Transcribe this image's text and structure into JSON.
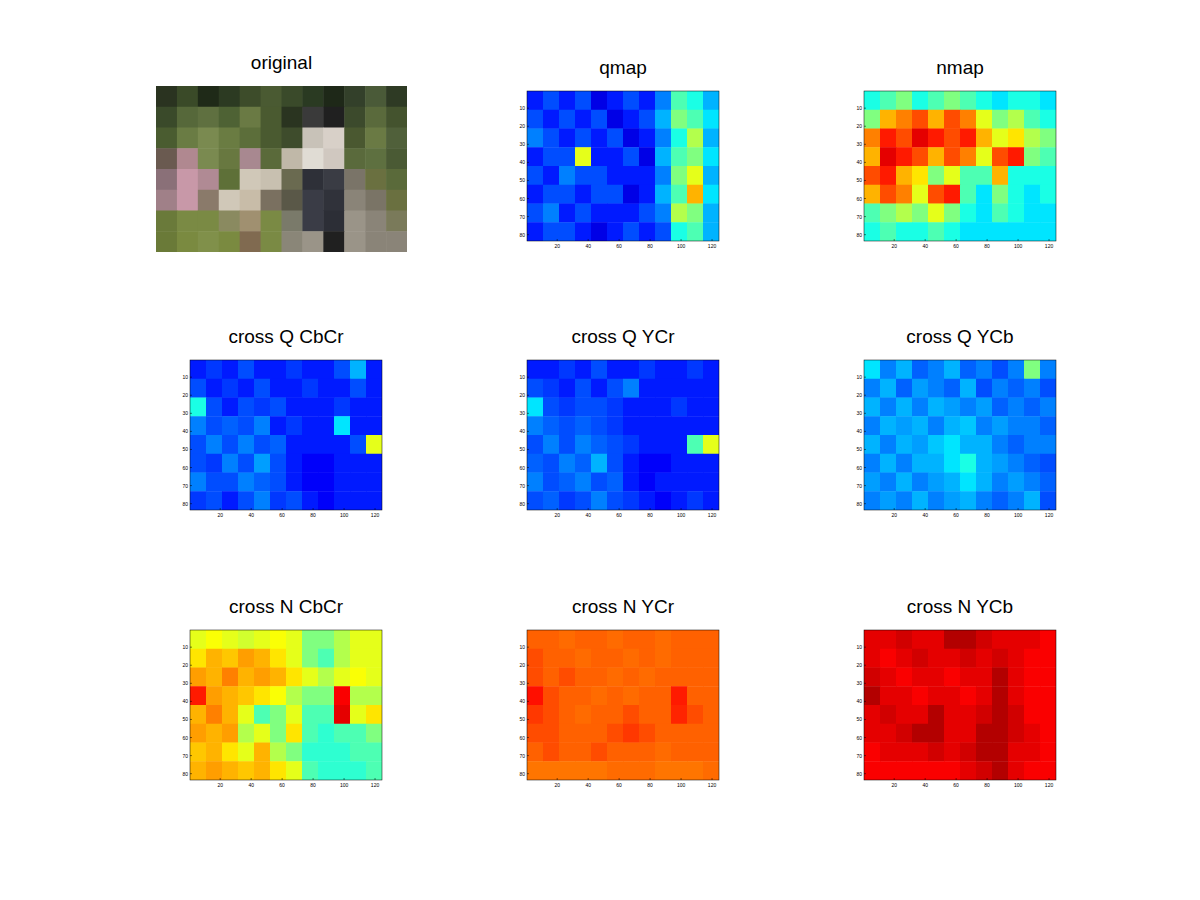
{
  "chart_data": [
    {
      "type": "image",
      "title": "original",
      "tick_labels": false,
      "pixels": [
        [
          "#2a3320",
          "#3a4a28",
          "#1f2a18",
          "#2c3a22",
          "#3d4c2a",
          "#4a5a32",
          "#3a4a2a",
          "#2a3a22",
          "#1e2818",
          "#33402a",
          "#4a5a38",
          "#2e3a24"
        ],
        [
          "#3a4a2a",
          "#56683a",
          "#5f7040",
          "#4e6234",
          "#6a7a44",
          "#4a5a30",
          "#2a3420",
          "#3a3a3a",
          "#202020",
          "#3c4a2c",
          "#5a6a3c",
          "#44532e"
        ],
        [
          "#4a5c30",
          "#6a7c44",
          "#7a8a50",
          "#6a7c42",
          "#5c6e3a",
          "#4a5a30",
          "#3e4c2c",
          "#c8c2b8",
          "#d8d0c8",
          "#4a5830",
          "#6a7a44",
          "#50603a"
        ],
        [
          "#6a5a50",
          "#b08890",
          "#7a8a50",
          "#687840",
          "#a88890",
          "#5a6a3a",
          "#c0b8a8",
          "#e0dcd4",
          "#d0c8c0",
          "#5a6a3c",
          "#5e7040",
          "#4a5a34"
        ],
        [
          "#8a7078",
          "#c898a8",
          "#b08a94",
          "#5e7038",
          "#d0c8b8",
          "#c8c0b0",
          "#6a6a50",
          "#2e3038",
          "#3a3c44",
          "#7a7468",
          "#6a7040",
          "#5a6a3a"
        ],
        [
          "#a08088",
          "#c898a8",
          "#8a7a6a",
          "#d0c8b8",
          "#c8bca8",
          "#7a7060",
          "#5a5848",
          "#3a3c46",
          "#30323a",
          "#8a8478",
          "#7a7466",
          "#6a7040"
        ],
        [
          "#6a7a3a",
          "#7a8a44",
          "#7a8a44",
          "#8a8a60",
          "#a09070",
          "#7a8a44",
          "#7a7a6a",
          "#3a3c46",
          "#2c2e36",
          "#9a9488",
          "#8a8478",
          "#7a7a5a"
        ],
        [
          "#6a7a38",
          "#7a8a40",
          "#80904a",
          "#7a8a40",
          "#806a50",
          "#7a8a44",
          "#8a8678",
          "#9a9488",
          "#202020",
          "#9a9488",
          "#8a8478",
          "#8a8478"
        ]
      ]
    },
    {
      "type": "heatmap",
      "title": "qmap",
      "color": "jet",
      "clim": [
        0,
        1
      ],
      "xlim": [
        0.5,
        124.5
      ],
      "ylim": [
        0.5,
        83.5
      ],
      "xticks": [
        20,
        40,
        60,
        80,
        100,
        120
      ],
      "yticks": [
        10,
        20,
        30,
        40,
        50,
        60,
        70,
        80
      ],
      "cells": [
        [
          0.15,
          0.2,
          0.15,
          0.2,
          0.1,
          0.15,
          0.2,
          0.15,
          0.25,
          0.45,
          0.4,
          0.3
        ],
        [
          0.2,
          0.15,
          0.2,
          0.15,
          0.2,
          0.1,
          0.15,
          0.2,
          0.3,
          0.5,
          0.45,
          0.35
        ],
        [
          0.25,
          0.2,
          0.15,
          0.2,
          0.15,
          0.2,
          0.1,
          0.15,
          0.25,
          0.4,
          0.55,
          0.3
        ],
        [
          0.15,
          0.2,
          0.2,
          0.6,
          0.15,
          0.15,
          0.2,
          0.1,
          0.3,
          0.45,
          0.5,
          0.35
        ],
        [
          0.2,
          0.15,
          0.25,
          0.2,
          0.2,
          0.15,
          0.15,
          0.15,
          0.25,
          0.5,
          0.6,
          0.3
        ],
        [
          0.15,
          0.2,
          0.2,
          0.15,
          0.2,
          0.2,
          0.1,
          0.15,
          0.3,
          0.45,
          0.7,
          0.35
        ],
        [
          0.2,
          0.25,
          0.15,
          0.2,
          0.15,
          0.15,
          0.15,
          0.2,
          0.25,
          0.55,
          0.5,
          0.3
        ],
        [
          0.15,
          0.2,
          0.2,
          0.15,
          0.1,
          0.15,
          0.2,
          0.15,
          0.2,
          0.4,
          0.45,
          0.3
        ]
      ]
    },
    {
      "type": "heatmap",
      "title": "nmap",
      "color": "jet",
      "clim": [
        0,
        1
      ],
      "xlim": [
        0.5,
        124.5
      ],
      "ylim": [
        0.5,
        83.5
      ],
      "xticks": [
        20,
        40,
        60,
        80,
        100,
        120
      ],
      "yticks": [
        10,
        20,
        30,
        40,
        50,
        60,
        70,
        80
      ],
      "cells": [
        [
          0.4,
          0.45,
          0.5,
          0.4,
          0.45,
          0.5,
          0.45,
          0.4,
          0.35,
          0.4,
          0.4,
          0.35
        ],
        [
          0.5,
          0.7,
          0.75,
          0.8,
          0.7,
          0.8,
          0.75,
          0.6,
          0.5,
          0.55,
          0.45,
          0.4
        ],
        [
          0.75,
          0.85,
          0.8,
          0.9,
          0.85,
          0.8,
          0.85,
          0.7,
          0.6,
          0.65,
          0.55,
          0.5
        ],
        [
          0.7,
          0.9,
          0.85,
          0.8,
          0.7,
          0.8,
          0.75,
          0.6,
          0.8,
          0.85,
          0.5,
          0.45
        ],
        [
          0.8,
          0.85,
          0.7,
          0.65,
          0.5,
          0.6,
          0.45,
          0.45,
          0.7,
          0.4,
          0.4,
          0.4
        ],
        [
          0.7,
          0.8,
          0.75,
          0.6,
          0.8,
          0.85,
          0.45,
          0.35,
          0.5,
          0.4,
          0.35,
          0.4
        ],
        [
          0.45,
          0.5,
          0.55,
          0.5,
          0.6,
          0.5,
          0.4,
          0.35,
          0.45,
          0.4,
          0.35,
          0.35
        ],
        [
          0.4,
          0.45,
          0.4,
          0.4,
          0.45,
          0.4,
          0.35,
          0.35,
          0.35,
          0.35,
          0.35,
          0.35
        ]
      ]
    },
    {
      "type": "heatmap",
      "title": "cross Q CbCr",
      "color": "jet",
      "clim": [
        0,
        1
      ],
      "xlim": [
        0.5,
        124.5
      ],
      "ylim": [
        0.5,
        83.5
      ],
      "xticks": [
        20,
        40,
        60,
        80,
        100,
        120
      ],
      "yticks": [
        10,
        20,
        30,
        40,
        50,
        60,
        70,
        80
      ],
      "cells": [
        [
          0.15,
          0.18,
          0.15,
          0.2,
          0.15,
          0.15,
          0.18,
          0.15,
          0.15,
          0.2,
          0.3,
          0.15
        ],
        [
          0.2,
          0.15,
          0.18,
          0.15,
          0.2,
          0.15,
          0.15,
          0.18,
          0.15,
          0.15,
          0.2,
          0.15
        ],
        [
          0.4,
          0.2,
          0.15,
          0.2,
          0.18,
          0.2,
          0.15,
          0.15,
          0.15,
          0.18,
          0.15,
          0.15
        ],
        [
          0.25,
          0.2,
          0.22,
          0.2,
          0.25,
          0.15,
          0.18,
          0.15,
          0.15,
          0.35,
          0.15,
          0.15
        ],
        [
          0.2,
          0.25,
          0.2,
          0.25,
          0.2,
          0.22,
          0.15,
          0.15,
          0.15,
          0.15,
          0.2,
          0.6
        ],
        [
          0.2,
          0.18,
          0.25,
          0.2,
          0.28,
          0.2,
          0.15,
          0.12,
          0.12,
          0.15,
          0.15,
          0.15
        ],
        [
          0.25,
          0.2,
          0.2,
          0.25,
          0.22,
          0.2,
          0.15,
          0.12,
          0.12,
          0.15,
          0.15,
          0.15
        ],
        [
          0.18,
          0.2,
          0.15,
          0.2,
          0.25,
          0.18,
          0.2,
          0.15,
          0.12,
          0.15,
          0.15,
          0.15
        ]
      ]
    },
    {
      "type": "heatmap",
      "title": "cross Q YCr",
      "color": "jet",
      "clim": [
        0,
        1
      ],
      "xlim": [
        0.5,
        124.5
      ],
      "ylim": [
        0.5,
        83.5
      ],
      "xticks": [
        20,
        40,
        60,
        80,
        100,
        120
      ],
      "yticks": [
        10,
        20,
        30,
        40,
        50,
        60,
        70,
        80
      ],
      "cells": [
        [
          0.15,
          0.15,
          0.18,
          0.15,
          0.2,
          0.15,
          0.15,
          0.18,
          0.15,
          0.15,
          0.18,
          0.15
        ],
        [
          0.2,
          0.18,
          0.15,
          0.2,
          0.15,
          0.2,
          0.25,
          0.15,
          0.15,
          0.15,
          0.15,
          0.15
        ],
        [
          0.35,
          0.2,
          0.18,
          0.2,
          0.2,
          0.18,
          0.15,
          0.15,
          0.15,
          0.18,
          0.15,
          0.15
        ],
        [
          0.25,
          0.22,
          0.2,
          0.22,
          0.2,
          0.18,
          0.15,
          0.15,
          0.15,
          0.15,
          0.15,
          0.15
        ],
        [
          0.2,
          0.25,
          0.2,
          0.25,
          0.22,
          0.2,
          0.18,
          0.15,
          0.15,
          0.15,
          0.45,
          0.6
        ],
        [
          0.22,
          0.2,
          0.25,
          0.22,
          0.3,
          0.2,
          0.15,
          0.12,
          0.12,
          0.15,
          0.15,
          0.15
        ],
        [
          0.25,
          0.2,
          0.22,
          0.25,
          0.2,
          0.22,
          0.15,
          0.12,
          0.15,
          0.15,
          0.15,
          0.15
        ],
        [
          0.2,
          0.22,
          0.18,
          0.2,
          0.25,
          0.2,
          0.18,
          0.15,
          0.12,
          0.15,
          0.18,
          0.15
        ]
      ]
    },
    {
      "type": "heatmap",
      "title": "cross Q YCb",
      "color": "jet",
      "clim": [
        0,
        1
      ],
      "xlim": [
        0.5,
        124.5
      ],
      "ylim": [
        0.5,
        83.5
      ],
      "xticks": [
        20,
        40,
        60,
        80,
        100,
        120
      ],
      "yticks": [
        10,
        20,
        30,
        40,
        50,
        60,
        70,
        80
      ],
      "cells": [
        [
          0.35,
          0.25,
          0.3,
          0.22,
          0.25,
          0.3,
          0.22,
          0.25,
          0.2,
          0.25,
          0.5,
          0.25
        ],
        [
          0.25,
          0.3,
          0.22,
          0.28,
          0.25,
          0.22,
          0.3,
          0.2,
          0.25,
          0.22,
          0.25,
          0.2
        ],
        [
          0.3,
          0.25,
          0.3,
          0.25,
          0.3,
          0.28,
          0.25,
          0.28,
          0.22,
          0.25,
          0.22,
          0.25
        ],
        [
          0.25,
          0.3,
          0.28,
          0.3,
          0.25,
          0.3,
          0.32,
          0.25,
          0.28,
          0.25,
          0.25,
          0.22
        ],
        [
          0.3,
          0.25,
          0.3,
          0.28,
          0.32,
          0.35,
          0.3,
          0.3,
          0.25,
          0.22,
          0.25,
          0.25
        ],
        [
          0.25,
          0.3,
          0.25,
          0.3,
          0.3,
          0.35,
          0.4,
          0.3,
          0.28,
          0.25,
          0.22,
          0.2
        ],
        [
          0.28,
          0.25,
          0.3,
          0.25,
          0.28,
          0.3,
          0.35,
          0.3,
          0.25,
          0.28,
          0.25,
          0.22
        ],
        [
          0.25,
          0.28,
          0.25,
          0.3,
          0.25,
          0.28,
          0.3,
          0.25,
          0.22,
          0.25,
          0.3,
          0.2
        ]
      ]
    },
    {
      "type": "heatmap",
      "title": "cross N CbCr",
      "color": "jet",
      "clim": [
        0,
        1
      ],
      "xlim": [
        0.5,
        124.5
      ],
      "ylim": [
        0.5,
        83.5
      ],
      "xticks": [
        20,
        40,
        60,
        80,
        100,
        120
      ],
      "yticks": [
        10,
        20,
        30,
        40,
        50,
        60,
        70,
        80
      ],
      "cells": [
        [
          0.6,
          0.62,
          0.6,
          0.58,
          0.6,
          0.62,
          0.6,
          0.5,
          0.5,
          0.55,
          0.6,
          0.6
        ],
        [
          0.65,
          0.7,
          0.68,
          0.72,
          0.7,
          0.65,
          0.6,
          0.5,
          0.45,
          0.55,
          0.6,
          0.6
        ],
        [
          0.72,
          0.7,
          0.75,
          0.7,
          0.72,
          0.7,
          0.65,
          0.6,
          0.55,
          0.6,
          0.62,
          0.6
        ],
        [
          0.85,
          0.72,
          0.7,
          0.68,
          0.65,
          0.62,
          0.55,
          0.5,
          0.5,
          0.88,
          0.55,
          0.55
        ],
        [
          0.7,
          0.75,
          0.7,
          0.6,
          0.45,
          0.5,
          0.6,
          0.45,
          0.45,
          0.9,
          0.6,
          0.65
        ],
        [
          0.72,
          0.7,
          0.72,
          0.55,
          0.6,
          0.5,
          0.65,
          0.45,
          0.42,
          0.45,
          0.45,
          0.5
        ],
        [
          0.68,
          0.7,
          0.65,
          0.6,
          0.7,
          0.55,
          0.5,
          0.42,
          0.42,
          0.42,
          0.45,
          0.45
        ],
        [
          0.7,
          0.72,
          0.7,
          0.68,
          0.7,
          0.65,
          0.6,
          0.45,
          0.42,
          0.42,
          0.42,
          0.45
        ]
      ]
    },
    {
      "type": "heatmap",
      "title": "cross N YCr",
      "color": "jet",
      "clim": [
        0,
        1
      ],
      "xlim": [
        0.5,
        124.5
      ],
      "ylim": [
        0.5,
        83.5
      ],
      "xticks": [
        20,
        40,
        60,
        80,
        100,
        120
      ],
      "yticks": [
        10,
        20,
        30,
        40,
        50,
        60,
        70,
        80
      ],
      "cells": [
        [
          0.78,
          0.78,
          0.77,
          0.78,
          0.78,
          0.77,
          0.78,
          0.78,
          0.77,
          0.78,
          0.78,
          0.78
        ],
        [
          0.8,
          0.78,
          0.78,
          0.77,
          0.78,
          0.78,
          0.77,
          0.78,
          0.77,
          0.78,
          0.78,
          0.78
        ],
        [
          0.8,
          0.78,
          0.8,
          0.78,
          0.78,
          0.77,
          0.78,
          0.77,
          0.78,
          0.78,
          0.78,
          0.78
        ],
        [
          0.86,
          0.8,
          0.78,
          0.78,
          0.77,
          0.78,
          0.77,
          0.78,
          0.78,
          0.85,
          0.78,
          0.78
        ],
        [
          0.82,
          0.8,
          0.78,
          0.77,
          0.78,
          0.78,
          0.8,
          0.78,
          0.78,
          0.84,
          0.8,
          0.78
        ],
        [
          0.8,
          0.8,
          0.78,
          0.78,
          0.78,
          0.8,
          0.82,
          0.8,
          0.78,
          0.78,
          0.78,
          0.78
        ],
        [
          0.78,
          0.8,
          0.78,
          0.78,
          0.8,
          0.78,
          0.78,
          0.78,
          0.77,
          0.78,
          0.78,
          0.78
        ],
        [
          0.76,
          0.76,
          0.76,
          0.76,
          0.76,
          0.77,
          0.77,
          0.77,
          0.76,
          0.76,
          0.76,
          0.77
        ]
      ]
    },
    {
      "type": "heatmap",
      "title": "cross N YCb",
      "color": "jet",
      "clim": [
        0,
        1
      ],
      "xlim": [
        0.5,
        124.5
      ],
      "ylim": [
        0.5,
        83.5
      ],
      "xticks": [
        20,
        40,
        60,
        80,
        100,
        120
      ],
      "yticks": [
        10,
        20,
        30,
        40,
        50,
        60,
        70,
        80
      ],
      "cells": [
        [
          0.9,
          0.9,
          0.92,
          0.9,
          0.9,
          0.95,
          0.95,
          0.92,
          0.9,
          0.9,
          0.9,
          0.88
        ],
        [
          0.9,
          0.88,
          0.9,
          0.92,
          0.9,
          0.9,
          0.92,
          0.9,
          0.92,
          0.9,
          0.88,
          0.88
        ],
        [
          0.92,
          0.9,
          0.88,
          0.9,
          0.9,
          0.88,
          0.9,
          0.9,
          0.95,
          0.9,
          0.88,
          0.88
        ],
        [
          0.95,
          0.9,
          0.9,
          0.88,
          0.9,
          0.9,
          0.88,
          0.9,
          0.95,
          0.9,
          0.88,
          0.88
        ],
        [
          0.9,
          0.92,
          0.9,
          0.9,
          0.95,
          0.9,
          0.9,
          0.92,
          0.95,
          0.92,
          0.88,
          0.88
        ],
        [
          0.9,
          0.9,
          0.92,
          0.95,
          0.95,
          0.9,
          0.9,
          0.95,
          0.95,
          0.92,
          0.9,
          0.88
        ],
        [
          0.88,
          0.9,
          0.9,
          0.9,
          0.92,
          0.9,
          0.92,
          0.95,
          0.95,
          0.9,
          0.9,
          0.88
        ],
        [
          0.88,
          0.88,
          0.88,
          0.88,
          0.88,
          0.88,
          0.9,
          0.92,
          0.95,
          0.9,
          0.88,
          0.88
        ]
      ]
    }
  ]
}
